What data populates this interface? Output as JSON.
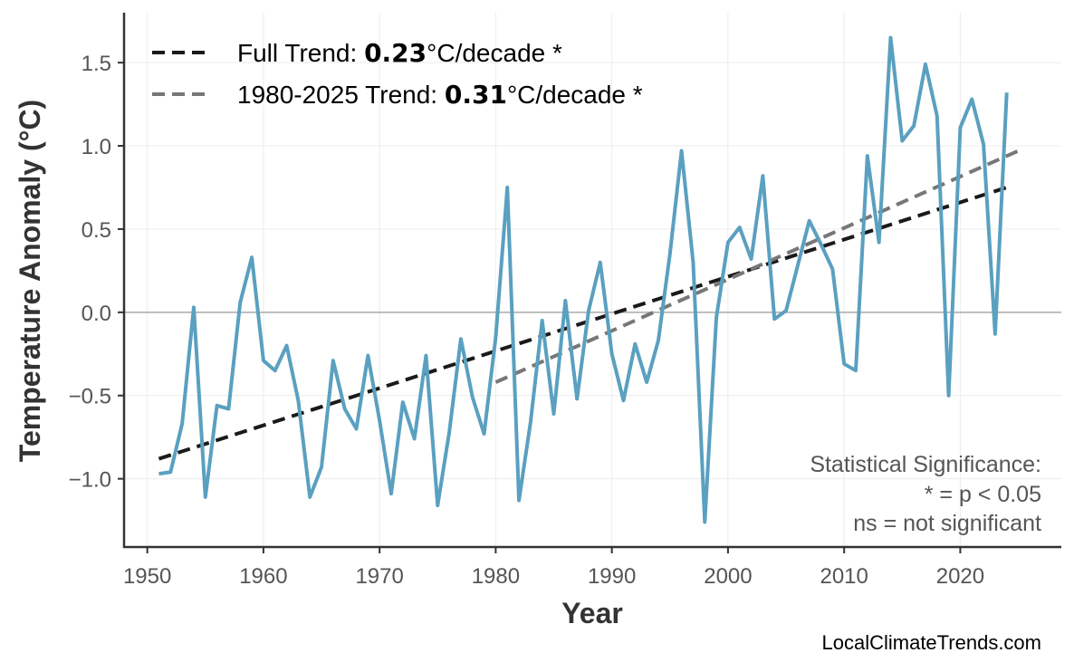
{
  "chart_data": {
    "type": "line",
    "title": "",
    "xlabel": "Year",
    "ylabel": "Temperature Anomaly (°C)",
    "xlim": [
      1948,
      2028.7
    ],
    "ylim": [
      -1.41,
      1.8
    ],
    "grid": true,
    "x_ticks": [
      1950,
      1960,
      1970,
      1980,
      1990,
      2000,
      2010,
      2020
    ],
    "y_ticks": [
      -1.0,
      -0.5,
      0.0,
      0.5,
      1.0,
      1.5
    ],
    "y_tick_labels": [
      "−1.0",
      "−0.5",
      "0.0",
      "0.5",
      "1.0",
      "1.5"
    ],
    "series": [
      {
        "color": "#5aa0c0",
        "x": [
          1951,
          1952,
          1953,
          1954,
          1955,
          1956,
          1957,
          1958,
          1959,
          1960,
          1961,
          1962,
          1963,
          1964,
          1965,
          1966,
          1967,
          1968,
          1969,
          1970,
          1971,
          1972,
          1973,
          1974,
          1975,
          1976,
          1977,
          1978,
          1979,
          1980,
          1981,
          1982,
          1983,
          1984,
          1985,
          1986,
          1987,
          1988,
          1989,
          1990,
          1991,
          1992,
          1993,
          1994,
          1995,
          1996,
          1997,
          1998,
          1999,
          2000,
          2001,
          2002,
          2003,
          2004,
          2005,
          2006,
          2007,
          2008,
          2009,
          2010,
          2011,
          2012,
          2013,
          2014,
          2015,
          2016,
          2017,
          2018,
          2019,
          2020,
          2021,
          2022,
          2023,
          2024
        ],
        "values": [
          -0.97,
          -0.96,
          -0.67,
          0.03,
          -1.11,
          -0.56,
          -0.58,
          0.06,
          0.33,
          -0.29,
          -0.35,
          -0.2,
          -0.53,
          -1.11,
          -0.93,
          -0.29,
          -0.58,
          -0.7,
          -0.26,
          -0.65,
          -1.09,
          -0.54,
          -0.76,
          -0.26,
          -1.16,
          -0.72,
          -0.16,
          -0.51,
          -0.73,
          -0.15,
          0.75,
          -1.13,
          -0.66,
          -0.05,
          -0.61,
          0.07,
          -0.52,
          0.01,
          0.3,
          -0.25,
          -0.53,
          -0.19,
          -0.42,
          -0.17,
          0.35,
          0.97,
          0.3,
          -1.26,
          -0.03,
          0.42,
          0.51,
          0.32,
          0.82,
          -0.04,
          0.01,
          0.28,
          0.55,
          0.41,
          0.26,
          -0.31,
          -0.35,
          0.94,
          0.42,
          1.65,
          1.03,
          1.12,
          1.49,
          1.18,
          -0.5,
          1.11,
          1.28,
          1.01,
          -0.13,
          1.32
        ]
      }
    ],
    "trends": [
      {
        "name_prefix": "Full Trend: ",
        "value": "0.23",
        "suffix": "°C/decade *",
        "color": "#1a1a1a",
        "x": [
          1951,
          2024
        ],
        "values": [
          -0.88,
          0.75
        ]
      },
      {
        "name_prefix": "1980-2025 Trend: ",
        "value": "0.31",
        "suffix": "°C/decade *",
        "color": "#777777",
        "x": [
          1980,
          2025
        ],
        "values": [
          -0.42,
          0.97
        ]
      }
    ],
    "legend_position": "top-left",
    "annotation": [
      "Statistical Significance:",
      "* = p < 0.05",
      "ns = not significant"
    ]
  },
  "watermark": "LocalClimateTrends.com"
}
